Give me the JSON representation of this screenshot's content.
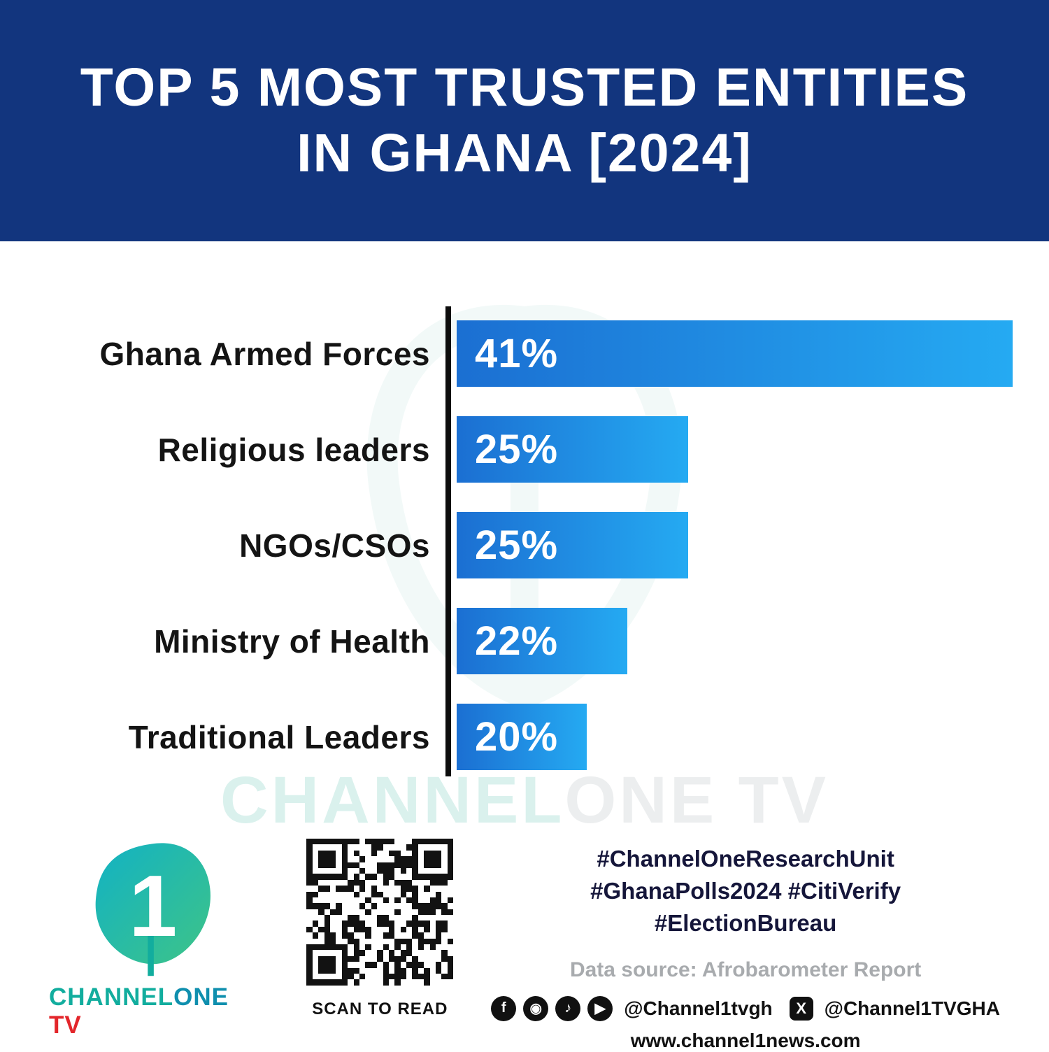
{
  "header": {
    "title_line1": "TOP 5 MOST TRUSTED ENTITIES",
    "title_line2": "IN GHANA [2024]"
  },
  "chart_data": {
    "type": "bar",
    "orientation": "horizontal",
    "title": "TOP 5 MOST TRUSTED ENTITIES IN GHANA [2024]",
    "categories": [
      "Ghana Armed Forces",
      "Religious leaders",
      "NGOs/CSOs",
      "Ministry of Health",
      "Traditional Leaders"
    ],
    "values": [
      41,
      25,
      25,
      22,
      20
    ],
    "value_labels": [
      "41%",
      "25%",
      "25%",
      "22%",
      "20%"
    ],
    "xlim": [
      0,
      41
    ],
    "grid": false,
    "legend": false,
    "bar_gradient": [
      "#1b6fd2",
      "#25aaf2"
    ],
    "axis_color": "#0d0d0d"
  },
  "watermark": {
    "part1": "CHANNEL",
    "part2": "ONE TV"
  },
  "footer": {
    "logo": {
      "channel": "CHANNEL",
      "one": "ONE",
      "tv": " TV"
    },
    "qr_caption": "SCAN TO READ",
    "hashtags": [
      "#ChannelOneResearchUnit",
      "#GhanaPolls2024 #CitiVerify",
      "#ElectionBureau"
    ],
    "data_source": "Data source: Afrobarometer Report",
    "social": {
      "facebook_icon": "f",
      "instagram_icon": "◉",
      "tiktok_icon": "♪",
      "youtube_icon": "▶",
      "x_icon": "X",
      "handle_1": "@Channel1tvgh",
      "handle_2": "@Channel1TVGHA"
    },
    "website": "www.channel1news.com"
  },
  "colors": {
    "header_bg": "#12357e",
    "bar_start": "#1b6fd2",
    "bar_end": "#25aaf2",
    "brand_teal": "#12ad9e",
    "brand_red": "#e3262b"
  }
}
